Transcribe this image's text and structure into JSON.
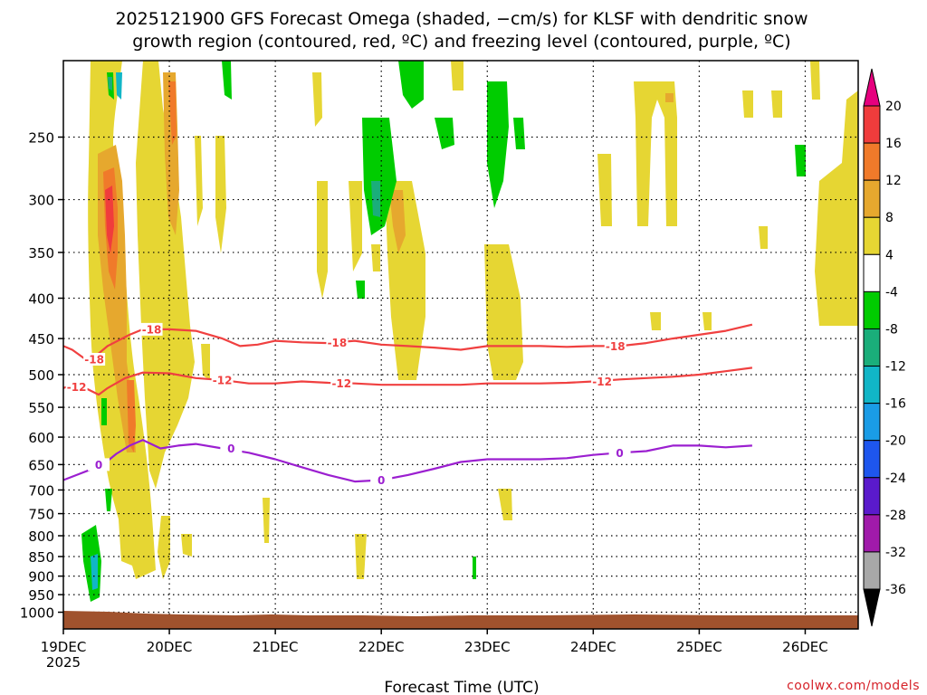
{
  "title_line1": "2025121900 GFS Forecast Omega (shaded, −cm/s) for KLSF with dendritic snow",
  "title_line2": "growth region (contoured, red, ºC) and freezing level (contoured, purple, ºC)",
  "x_axis_label": "Forecast Time (UTC)",
  "year_label": "2025",
  "credit": "coolwx.com/models",
  "chart_data": {
    "type": "heatmap",
    "title": "2025121900 GFS Forecast Omega (shaded, −cm/s) for KLSF with dendritic snow growth region (contoured, red, ºC) and freezing level (contoured, purple, ºC)",
    "xlabel": "Forecast Time (UTC)",
    "ylabel": "",
    "x_start": "2025-12-19T00Z",
    "x_end": "2025-12-26T12Z",
    "x_ticks": [
      "19DEC",
      "20DEC",
      "21DEC",
      "22DEC",
      "23DEC",
      "24DEC",
      "25DEC",
      "26DEC"
    ],
    "y_axis": {
      "scale": "log",
      "ylim_top": 200,
      "ylim_bottom": 1050,
      "inverted": true
    },
    "y_ticks": [
      250,
      300,
      350,
      400,
      450,
      500,
      550,
      600,
      650,
      700,
      750,
      800,
      850,
      900,
      950,
      1000
    ],
    "grid": true,
    "colorbar": {
      "labels": [
        20,
        16,
        12,
        8,
        4,
        -4,
        -8,
        -12,
        -16,
        -20,
        -24,
        -28,
        -32,
        -36
      ],
      "colors": [
        "#e6007e",
        "#f03c3c",
        "#f07a2a",
        "#e6a82e",
        "#e6d633",
        "#ffffff",
        "#00cc00",
        "#1aae7a",
        "#11b6c7",
        "#1a9ce6",
        "#1e56ee",
        "#5a1acc",
        "#a01aaa",
        "#a8a8a8",
        "#000000"
      ]
    },
    "contours": [
      {
        "level": -18,
        "color": "#f04040",
        "label": "-18",
        "points": [
          [
            0,
            460
          ],
          [
            2,
            465
          ],
          [
            5,
            478
          ],
          [
            8,
            470
          ],
          [
            10,
            460
          ],
          [
            15,
            445
          ],
          [
            18,
            438
          ],
          [
            24,
            438
          ],
          [
            30,
            440
          ],
          [
            36,
            450
          ],
          [
            40,
            460
          ],
          [
            44,
            458
          ],
          [
            48,
            453
          ],
          [
            54,
            455
          ],
          [
            60,
            456
          ],
          [
            66,
            453
          ],
          [
            72,
            458
          ],
          [
            78,
            460
          ],
          [
            84,
            462
          ],
          [
            90,
            465
          ],
          [
            96,
            460
          ],
          [
            102,
            460
          ],
          [
            108,
            460
          ],
          [
            114,
            461
          ],
          [
            120,
            460
          ],
          [
            126,
            460
          ],
          [
            132,
            456
          ],
          [
            138,
            450
          ],
          [
            144,
            445
          ],
          [
            150,
            440
          ],
          [
            156,
            432
          ]
        ],
        "label_at": [
          [
            7,
            478
          ],
          [
            20,
            438
          ],
          [
            62,
            455
          ],
          [
            125,
            460
          ]
        ]
      },
      {
        "level": -12,
        "color": "#f04040",
        "label": "-12",
        "points": [
          [
            0,
            520
          ],
          [
            2,
            515
          ],
          [
            5,
            520
          ],
          [
            8,
            530
          ],
          [
            10,
            520
          ],
          [
            14,
            505
          ],
          [
            18,
            497
          ],
          [
            24,
            498
          ],
          [
            30,
            505
          ],
          [
            36,
            508
          ],
          [
            42,
            513
          ],
          [
            48,
            513
          ],
          [
            54,
            510
          ],
          [
            60,
            512
          ],
          [
            66,
            513
          ],
          [
            72,
            515
          ],
          [
            78,
            515
          ],
          [
            84,
            515
          ],
          [
            90,
            515
          ],
          [
            96,
            513
          ],
          [
            102,
            513
          ],
          [
            108,
            513
          ],
          [
            114,
            512
          ],
          [
            120,
            510
          ],
          [
            126,
            507
          ],
          [
            132,
            505
          ],
          [
            138,
            503
          ],
          [
            144,
            500
          ],
          [
            150,
            495
          ],
          [
            156,
            490
          ]
        ],
        "label_at": [
          [
            3,
            518
          ],
          [
            36,
            508
          ],
          [
            63,
            513
          ],
          [
            122,
            510
          ]
        ]
      },
      {
        "level": 0,
        "color": "#9b1fd0",
        "label": "0",
        "points": [
          [
            0,
            680
          ],
          [
            3,
            670
          ],
          [
            6,
            660
          ],
          [
            9,
            650
          ],
          [
            12,
            630
          ],
          [
            15,
            615
          ],
          [
            18,
            605
          ],
          [
            22,
            620
          ],
          [
            26,
            615
          ],
          [
            30,
            612
          ],
          [
            36,
            620
          ],
          [
            42,
            628
          ],
          [
            48,
            640
          ],
          [
            54,
            655
          ],
          [
            60,
            670
          ],
          [
            66,
            683
          ],
          [
            72,
            680
          ],
          [
            78,
            670
          ],
          [
            84,
            658
          ],
          [
            90,
            645
          ],
          [
            96,
            640
          ],
          [
            102,
            640
          ],
          [
            108,
            640
          ],
          [
            114,
            638
          ],
          [
            120,
            632
          ],
          [
            126,
            628
          ],
          [
            132,
            625
          ],
          [
            138,
            615
          ],
          [
            144,
            615
          ],
          [
            150,
            618
          ],
          [
            156,
            615
          ]
        ],
        "label_at": [
          [
            8,
            650
          ],
          [
            38,
            620
          ],
          [
            72,
            680
          ],
          [
            126,
            628
          ]
        ]
      }
    ],
    "surface_pressure_hPa": 1000
  }
}
